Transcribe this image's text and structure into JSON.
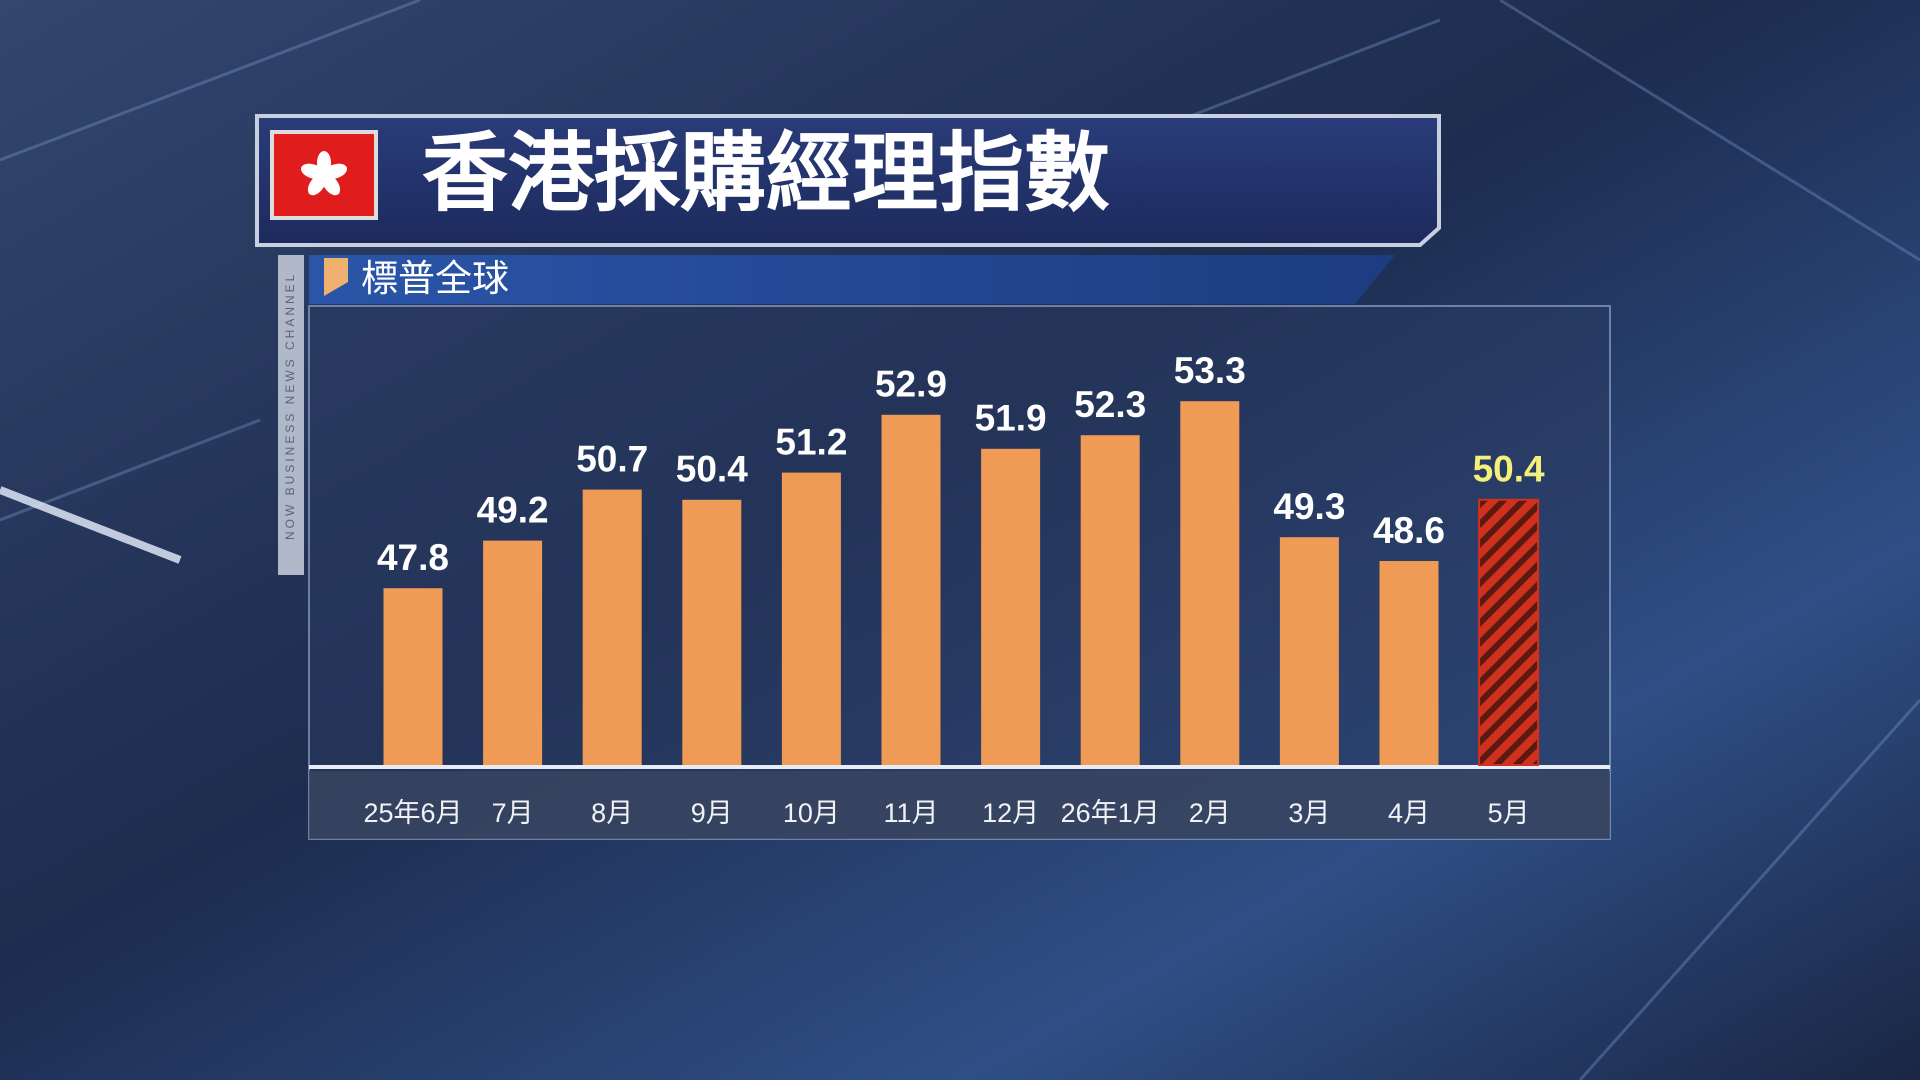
{
  "chart_data": {
    "type": "bar",
    "title": "香港採購經理指數",
    "subtitle": "標普全球",
    "channel": "NOW BUSINESS NEWS CHANNEL",
    "categories": [
      "25年6月",
      "7月",
      "8月",
      "9月",
      "10月",
      "11月",
      "12月",
      "26年1月",
      "2月",
      "3月",
      "4月",
      "5月"
    ],
    "values": [
      47.8,
      49.2,
      50.7,
      50.4,
      51.2,
      52.9,
      51.9,
      52.3,
      53.3,
      49.3,
      48.6,
      50.4
    ],
    "colors": [
      "#ef9a55",
      "#ef9a55",
      "#ef9a55",
      "#ef9a55",
      "#ef9a55",
      "#ef9a55",
      "#ef9a55",
      "#ef9a55",
      "#ef9a55",
      "#ef9a55",
      "#ef9a55",
      "#d0301e"
    ],
    "label_colors": [
      "#ffffff",
      "#ffffff",
      "#ffffff",
      "#ffffff",
      "#ffffff",
      "#ffffff",
      "#ffffff",
      "#ffffff",
      "#ffffff",
      "#ffffff",
      "#ffffff",
      "#f4f07a"
    ],
    "ylim": [
      42.6,
      56.1
    ]
  }
}
